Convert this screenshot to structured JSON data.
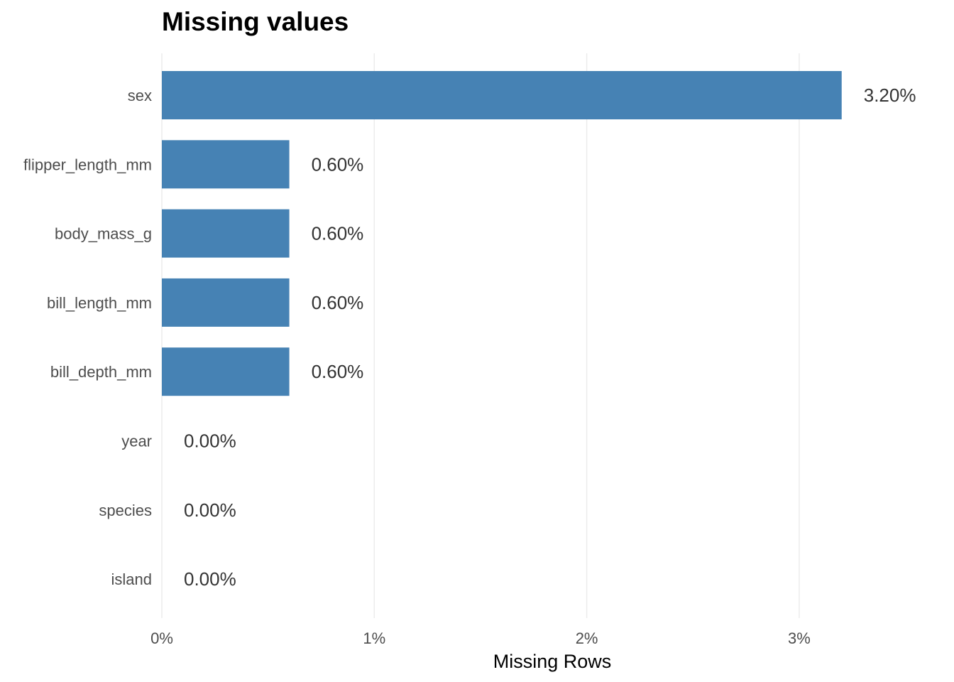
{
  "chart_data": {
    "type": "bar",
    "orientation": "horizontal",
    "title": "Missing values",
    "xlabel": "Missing Rows",
    "ylabel": "",
    "xlim": [
      0,
      3.6
    ],
    "x_ticks": [
      0,
      1,
      2,
      3
    ],
    "x_tick_labels": [
      "0%",
      "1%",
      "2%",
      "3%"
    ],
    "grid": true,
    "legend": "none",
    "bar_color": "#4682B4",
    "categories": [
      "sex",
      "flipper_length_mm",
      "body_mass_g",
      "bill_length_mm",
      "bill_depth_mm",
      "year",
      "species",
      "island"
    ],
    "values": [
      3.2,
      0.6,
      0.6,
      0.6,
      0.6,
      0,
      0,
      0
    ],
    "value_labels": [
      "3.20%",
      "0.60%",
      "0.60%",
      "0.60%",
      "0.60%",
      "0.00%",
      "0.00%",
      "0.00%"
    ]
  }
}
